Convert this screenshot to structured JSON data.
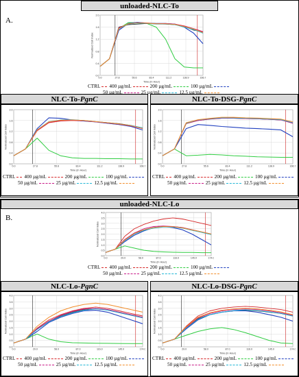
{
  "figure": {
    "panel_a_letter": "A.",
    "panel_b_letter": "B.",
    "headers": {
      "unloaded_to": "unloaded-NLC-To",
      "nlc_to_pgnc_main": "NLC-To-",
      "nlc_to_pgnc_ital": "PgnC",
      "nlc_to_dsg_main": "NLC-To-DSG-",
      "nlc_to_dsg_ital": "PgnC",
      "unloaded_lo": "unloaded-NLC-Lo",
      "nlc_lo_pgnc_main": "NLC-Lo-",
      "nlc_lo_pgnc_ital": "PgnC",
      "nlc_lo_dsg_main": "NLC-Lo-DSG-",
      "nlc_lo_dsg_ital": "PgnC"
    },
    "legend": {
      "ctrl": "CTRL",
      "s400": "400 µg/mL",
      "s200": "200 µg/mL",
      "s100": "100 µg/mL",
      "s50": "50 µg/mL",
      "s25": "25 µg/mL",
      "s12": "12.5 µg/mL"
    },
    "axis": {
      "xlabel": "Time (in Hour)",
      "ylabel": "Normalized Cell Index"
    },
    "colors": {
      "ctrl": "#333333",
      "s400": "#d62728",
      "s200": "#2ecc40",
      "s100": "#1f3fbf",
      "s50": "#c71585",
      "s25": "#1fb5d6",
      "s12": "#f28c28",
      "grid": "#d0d0d0",
      "marker": "#cc2222",
      "panel_bg": "#ffffff"
    }
  },
  "chart_data": [
    {
      "panel": "unloaded-NLC-To",
      "type": "line",
      "xticks": [
        "0.0",
        "27.8",
        "55.6",
        "83.4",
        "111.2",
        "138.9",
        "166.7"
      ],
      "ylim": [
        0,
        2
      ],
      "yticks": [
        "0.0",
        "0.4",
        "0.8",
        "1.2",
        "1.6",
        "2.0"
      ],
      "series": [
        {
          "name": "CTRL",
          "values": [
            0.3,
            0.55,
            1.6,
            1.68,
            1.7,
            1.72,
            1.71,
            1.7,
            1.68,
            1.62,
            1.5,
            1.45
          ]
        },
        {
          "name": "400 µg/mL",
          "values": [
            0.3,
            0.55,
            1.55,
            1.7,
            1.75,
            1.74,
            1.72,
            1.72,
            1.7,
            1.64,
            1.55,
            1.45
          ]
        },
        {
          "name": "200 µg/mL",
          "values": [
            0.3,
            0.55,
            1.55,
            1.75,
            1.75,
            1.72,
            1.6,
            1.2,
            0.55,
            0.28,
            0.25,
            0.25
          ]
        },
        {
          "name": "100 µg/mL",
          "values": [
            0.3,
            0.55,
            1.5,
            1.72,
            1.76,
            1.73,
            1.72,
            1.72,
            1.7,
            1.6,
            1.4,
            1.05
          ]
        },
        {
          "name": "50 µg/mL",
          "values": [
            0.3,
            0.55,
            1.58,
            1.7,
            1.74,
            1.72,
            1.71,
            1.72,
            1.7,
            1.63,
            1.55,
            1.45
          ]
        },
        {
          "name": "25 µg/mL",
          "values": [
            0.3,
            0.55,
            1.55,
            1.7,
            1.73,
            1.72,
            1.7,
            1.7,
            1.68,
            1.6,
            1.52,
            1.4
          ]
        },
        {
          "name": "12.5 µg/mL",
          "values": [
            0.3,
            0.55,
            1.56,
            1.71,
            1.74,
            1.73,
            1.71,
            1.71,
            1.69,
            1.62,
            1.54,
            1.42
          ]
        }
      ]
    },
    {
      "panel": "NLC-To-PgnC",
      "type": "line",
      "xticks": [
        "0.0",
        "27.8",
        "55.6",
        "83.4",
        "111.2",
        "138.9",
        "166.7"
      ],
      "ylim": [
        0,
        2
      ],
      "yticks": [
        "0.0",
        "0.4",
        "0.8",
        "1.2",
        "1.6",
        "2.0"
      ],
      "series": [
        {
          "name": "CTRL",
          "values": [
            0.3,
            0.55,
            1.25,
            1.55,
            1.6,
            1.62,
            1.6,
            1.56,
            1.52,
            1.48,
            1.42,
            1.32
          ]
        },
        {
          "name": "400 µg/mL",
          "values": [
            0.3,
            0.55,
            1.22,
            1.52,
            1.58,
            1.6,
            1.58,
            1.55,
            1.5,
            1.45,
            1.4,
            1.3
          ]
        },
        {
          "name": "200 µg/mL",
          "values": [
            0.3,
            0.55,
            0.95,
            0.5,
            0.3,
            0.22,
            0.2,
            0.2,
            0.19,
            0.19,
            0.18,
            0.18
          ]
        },
        {
          "name": "100 µg/mL",
          "values": [
            0.3,
            0.55,
            1.3,
            1.7,
            1.68,
            1.62,
            1.58,
            1.55,
            1.5,
            1.45,
            1.38,
            1.25
          ]
        },
        {
          "name": "50 µg/mL",
          "values": [
            0.3,
            0.55,
            1.24,
            1.54,
            1.6,
            1.61,
            1.59,
            1.55,
            1.51,
            1.46,
            1.4,
            1.3
          ]
        },
        {
          "name": "25 µg/mL",
          "values": [
            0.3,
            0.55,
            1.26,
            1.56,
            1.62,
            1.63,
            1.6,
            1.56,
            1.52,
            1.47,
            1.42,
            1.33
          ]
        },
        {
          "name": "12.5 µg/mL",
          "values": [
            0.3,
            0.55,
            1.25,
            1.55,
            1.61,
            1.62,
            1.6,
            1.56,
            1.52,
            1.47,
            1.41,
            1.31
          ]
        }
      ]
    },
    {
      "panel": "NLC-To-DSG-PgnC",
      "type": "line",
      "xticks": [
        "0.0",
        "27.8",
        "55.6",
        "83.4",
        "111.2",
        "138.9",
        "166.7"
      ],
      "ylim": [
        0,
        2
      ],
      "yticks": [
        "0.0",
        "0.4",
        "0.8",
        "1.2",
        "1.6",
        "2.0"
      ],
      "series": [
        {
          "name": "CTRL",
          "values": [
            0.3,
            0.55,
            1.5,
            1.6,
            1.65,
            1.68,
            1.68,
            1.67,
            1.66,
            1.64,
            1.62,
            1.5
          ]
        },
        {
          "name": "400 µg/mL",
          "values": [
            0.3,
            0.55,
            1.48,
            1.6,
            1.66,
            1.7,
            1.7,
            1.69,
            1.68,
            1.66,
            1.64,
            1.52
          ]
        },
        {
          "name": "200 µg/mL",
          "values": [
            0.3,
            0.55,
            0.3,
            0.32,
            0.35,
            0.33,
            0.3,
            0.28,
            0.26,
            0.25,
            0.24,
            0.24
          ]
        },
        {
          "name": "100 µg/mL",
          "values": [
            0.3,
            0.55,
            1.3,
            1.45,
            1.42,
            1.38,
            1.35,
            1.32,
            1.3,
            1.28,
            1.25,
            1.0
          ]
        },
        {
          "name": "50 µg/mL",
          "values": [
            0.3,
            0.55,
            1.5,
            1.6,
            1.66,
            1.68,
            1.68,
            1.67,
            1.66,
            1.64,
            1.62,
            1.5
          ]
        },
        {
          "name": "25 µg/mL",
          "values": [
            0.3,
            0.55,
            1.5,
            1.62,
            1.67,
            1.7,
            1.69,
            1.68,
            1.67,
            1.65,
            1.63,
            1.52
          ]
        },
        {
          "name": "12.5 µg/mL",
          "values": [
            0.3,
            0.55,
            1.52,
            1.63,
            1.68,
            1.72,
            1.72,
            1.7,
            1.69,
            1.67,
            1.65,
            1.55
          ]
        }
      ]
    },
    {
      "panel": "unloaded-NLC-Lo",
      "type": "line",
      "xticks": [
        "0.0",
        "29.0",
        "58.0",
        "87.0",
        "116.0",
        "145.0",
        "174.0"
      ],
      "ylim": [
        0,
        4
      ],
      "yticks": [
        "0.0",
        "0.5",
        "1.0",
        "1.5",
        "2.0",
        "2.5",
        "3.0",
        "3.5",
        "4.0"
      ],
      "series": [
        {
          "name": "CTRL",
          "values": [
            0.3,
            0.6,
            1.5,
            2.1,
            2.4,
            2.6,
            2.7,
            2.7,
            2.6,
            2.4,
            2.2,
            2.0
          ]
        },
        {
          "name": "400 µg/mL",
          "values": [
            0.3,
            0.6,
            1.8,
            2.5,
            2.9,
            3.2,
            3.4,
            3.5,
            3.4,
            3.2,
            3.0,
            2.8
          ]
        },
        {
          "name": "200 µg/mL",
          "values": [
            0.3,
            0.6,
            0.9,
            0.7,
            0.5,
            0.4,
            0.35,
            0.32,
            0.3,
            0.3,
            0.28,
            0.28
          ]
        },
        {
          "name": "100 µg/mL",
          "values": [
            0.3,
            0.6,
            1.3,
            1.9,
            2.3,
            2.6,
            2.7,
            2.6,
            2.4,
            2.0,
            1.5,
            1.0
          ]
        },
        {
          "name": "50 µg/mL",
          "values": [
            0.3,
            0.6,
            1.5,
            2.1,
            2.5,
            2.7,
            2.75,
            2.7,
            2.6,
            2.4,
            2.2,
            2.0
          ]
        },
        {
          "name": "25 µg/mL",
          "values": [
            0.3,
            0.6,
            1.4,
            2.0,
            2.35,
            2.55,
            2.65,
            2.65,
            2.55,
            2.35,
            2.15,
            1.95
          ]
        },
        {
          "name": "12.5 µg/mL",
          "values": [
            0.3,
            0.6,
            1.45,
            2.05,
            2.4,
            2.6,
            2.7,
            2.68,
            2.58,
            2.38,
            2.2,
            2.0
          ]
        }
      ]
    },
    {
      "panel": "NLC-Lo-PgnC",
      "type": "line",
      "xticks": [
        "0.0",
        "29.0",
        "58.0",
        "87.0",
        "116.0",
        "145.0",
        "174.0"
      ],
      "ylim": [
        0,
        4
      ],
      "yticks": [
        "0.0",
        "0.5",
        "1.0",
        "1.5",
        "2.0",
        "2.5",
        "3.0",
        "3.5",
        "4.0"
      ],
      "series": [
        {
          "name": "CTRL",
          "values": [
            0.3,
            0.6,
            1.4,
            2.0,
            2.4,
            2.7,
            2.9,
            3.0,
            2.9,
            2.7,
            2.5,
            2.3
          ]
        },
        {
          "name": "400 µg/mL",
          "values": [
            0.3,
            0.6,
            1.45,
            2.1,
            2.5,
            2.8,
            3.0,
            3.1,
            3.0,
            2.8,
            2.6,
            2.4
          ]
        },
        {
          "name": "200 µg/mL",
          "values": [
            0.3,
            0.6,
            1.0,
            0.6,
            0.4,
            0.32,
            0.3,
            0.28,
            0.27,
            0.26,
            0.25,
            0.25
          ]
        },
        {
          "name": "100 µg/mL",
          "values": [
            0.3,
            0.6,
            1.2,
            1.9,
            2.3,
            2.6,
            2.8,
            2.85,
            2.7,
            2.4,
            2.1,
            1.8
          ]
        },
        {
          "name": "50 µg/mL",
          "values": [
            0.3,
            0.6,
            1.4,
            2.0,
            2.45,
            2.75,
            2.95,
            3.0,
            2.9,
            2.7,
            2.5,
            2.3
          ]
        },
        {
          "name": "25 µg/mL",
          "values": [
            0.3,
            0.6,
            1.35,
            1.95,
            2.35,
            2.65,
            2.85,
            2.95,
            2.85,
            2.65,
            2.45,
            2.25
          ]
        },
        {
          "name": "12.5 µg/mL",
          "values": [
            0.3,
            0.6,
            1.6,
            2.3,
            2.8,
            3.1,
            3.3,
            3.4,
            3.3,
            3.1,
            2.9,
            2.7
          ]
        }
      ]
    },
    {
      "panel": "NLC-Lo-DSG-PgnC",
      "type": "line",
      "xticks": [
        "0.0",
        "29.0",
        "58.0",
        "87.0",
        "116.0",
        "145.0",
        "174.0"
      ],
      "ylim": [
        0,
        4
      ],
      "yticks": [
        "0.0",
        "0.5",
        "1.0",
        "1.5",
        "2.0",
        "2.5",
        "3.0",
        "3.5",
        "4.0"
      ],
      "series": [
        {
          "name": "CTRL",
          "values": [
            0.3,
            0.6,
            1.5,
            2.2,
            2.5,
            2.7,
            2.8,
            2.85,
            2.8,
            2.7,
            2.6,
            2.4
          ]
        },
        {
          "name": "400 µg/mL",
          "values": [
            0.3,
            0.6,
            1.6,
            2.4,
            2.8,
            3.0,
            3.1,
            3.15,
            3.1,
            3.0,
            2.9,
            2.7
          ]
        },
        {
          "name": "200 µg/mL",
          "values": [
            0.3,
            0.6,
            0.9,
            1.2,
            1.4,
            1.5,
            1.35,
            1.1,
            0.8,
            0.5,
            0.3,
            0.25
          ]
        },
        {
          "name": "100 µg/mL",
          "values": [
            0.3,
            0.6,
            1.4,
            2.1,
            2.5,
            2.7,
            2.8,
            2.8,
            2.7,
            2.5,
            2.3,
            2.0
          ]
        },
        {
          "name": "50 µg/mL",
          "values": [
            0.3,
            0.6,
            1.5,
            2.25,
            2.6,
            2.8,
            2.9,
            2.95,
            2.9,
            2.8,
            2.65,
            2.45
          ]
        },
        {
          "name": "25 µg/mL",
          "values": [
            0.3,
            0.6,
            1.45,
            2.15,
            2.5,
            2.7,
            2.82,
            2.88,
            2.82,
            2.72,
            2.6,
            2.4
          ]
        },
        {
          "name": "12.5 µg/mL",
          "values": [
            0.3,
            0.6,
            1.55,
            2.3,
            2.65,
            2.85,
            2.95,
            3.0,
            2.95,
            2.85,
            2.72,
            2.5
          ]
        }
      ]
    }
  ]
}
